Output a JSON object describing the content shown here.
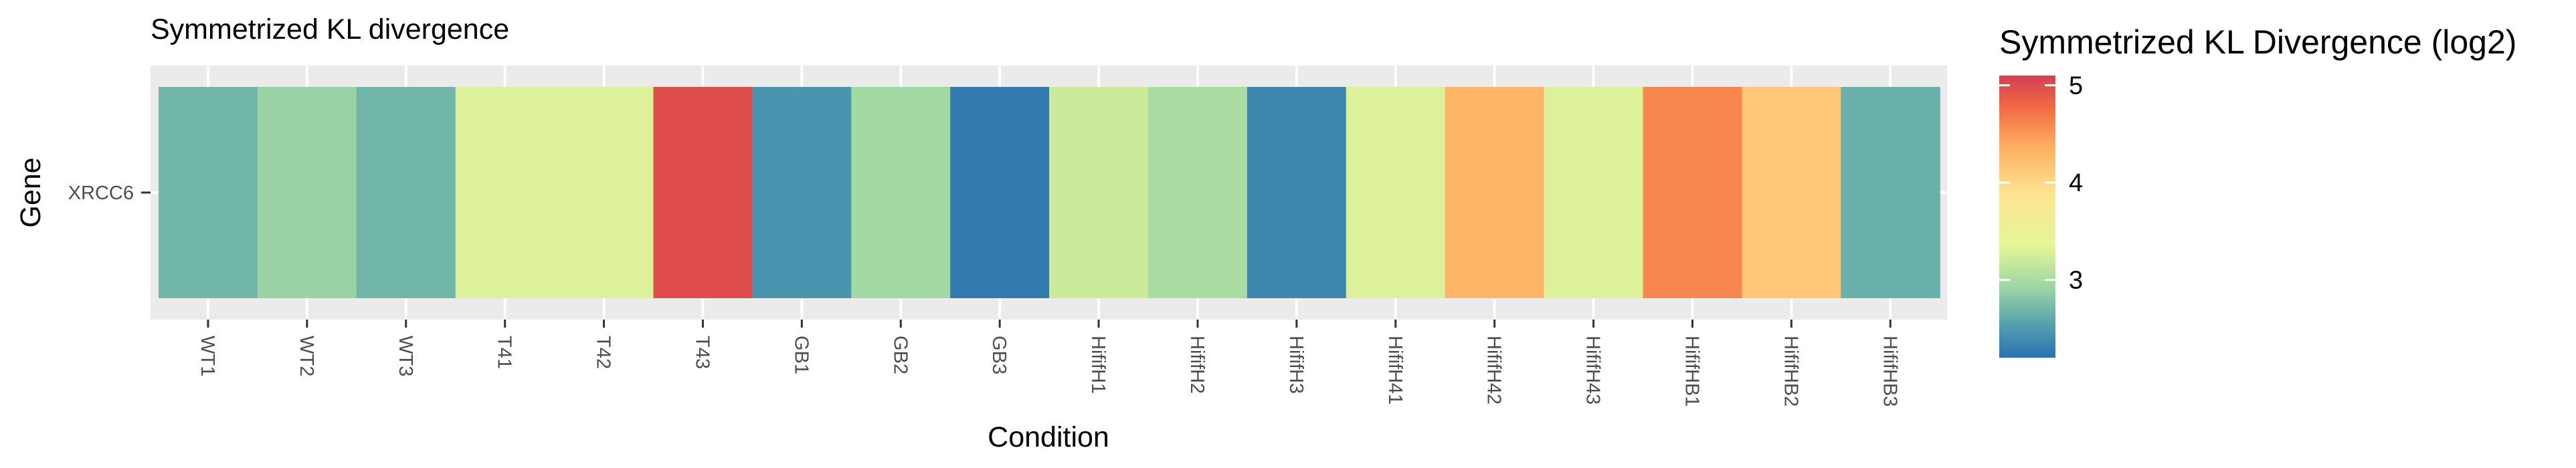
{
  "chart_data": {
    "type": "heatmap",
    "title": "Symmetrized KL divergence",
    "xlabel": "Condition",
    "ylabel": "Gene",
    "rows": [
      "XRCC6"
    ],
    "columns": [
      "WT1",
      "WT2",
      "WT3",
      "T41",
      "T42",
      "T43",
      "GB1",
      "GB2",
      "GB3",
      "HififH1",
      "HififH2",
      "HififH3",
      "HififH41",
      "HififH42",
      "HififH43",
      "HififHB1",
      "HififHB2",
      "HififHB3"
    ],
    "values": [
      [
        2.7,
        2.9,
        2.7,
        3.3,
        3.3,
        5.0,
        2.45,
        2.95,
        2.25,
        3.2,
        3.0,
        2.35,
        3.3,
        4.3,
        3.3,
        4.6,
        4.15,
        2.65
      ]
    ],
    "grid": true,
    "legend": {
      "title": "Symmetrized KL Divergence (log2)",
      "position": "right",
      "min": 2.2,
      "max": 5.1,
      "ticks": [
        "3",
        "4",
        "5"
      ],
      "palette": "Spectral"
    }
  }
}
